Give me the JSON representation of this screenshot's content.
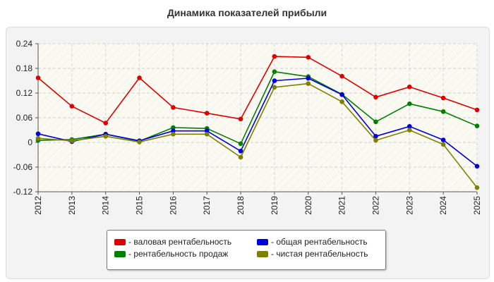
{
  "chart_data": {
    "type": "line",
    "title": "Динамика показателей прибыли",
    "categories": [
      "2012",
      "2013",
      "2014",
      "2015",
      "2016",
      "2017",
      "2018",
      "2019",
      "2020",
      "2021",
      "2022",
      "2023",
      "2024",
      "2025"
    ],
    "ylim": [
      -0.12,
      0.24
    ],
    "yticks": [
      0.24,
      0.18,
      0.12,
      0.06,
      0,
      -0.06,
      -0.12
    ],
    "ytick_labels": [
      "0.24",
      "0.18",
      "0.12",
      "0.06",
      "0",
      "-0.06",
      "-0.12"
    ],
    "grid": true,
    "legend_position": "bottom-center",
    "series": [
      {
        "name": "- валовая рентабельность",
        "color": "#e00000",
        "values": [
          0.157,
          0.088,
          0.047,
          0.157,
          0.085,
          0.071,
          0.057,
          0.209,
          0.207,
          0.161,
          0.11,
          0.135,
          0.108,
          0.079
        ]
      },
      {
        "name": "- рентабельность продаж",
        "color": "#007f00",
        "values": [
          0.005,
          0.007,
          0.02,
          0.003,
          0.036,
          0.034,
          -0.003,
          0.172,
          0.16,
          0.117,
          0.05,
          0.094,
          0.075,
          0.04
        ]
      },
      {
        "name": "- общая рентабельность",
        "color": "#0000e0",
        "values": [
          0.021,
          0.002,
          0.02,
          0.004,
          0.028,
          0.028,
          -0.021,
          0.15,
          0.156,
          0.116,
          0.015,
          0.039,
          0.006,
          -0.058
        ]
      },
      {
        "name": "- чистая рентабельность",
        "color": "#808000",
        "values": [
          0.01,
          0.004,
          0.015,
          0.001,
          0.02,
          0.02,
          -0.036,
          0.134,
          0.143,
          0.099,
          0.005,
          0.03,
          -0.005,
          -0.11
        ]
      }
    ]
  }
}
